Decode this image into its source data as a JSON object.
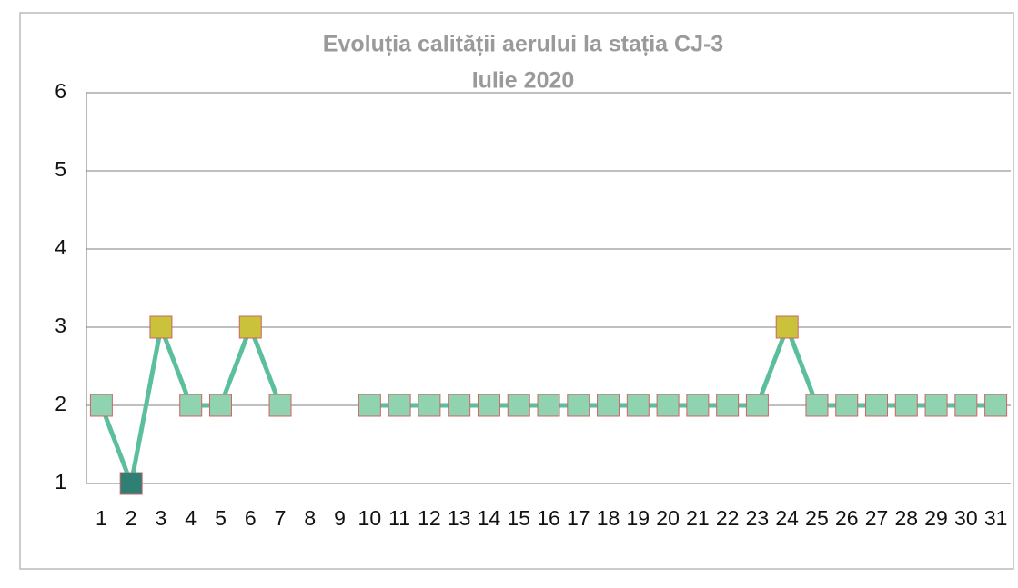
{
  "chart_data": {
    "type": "line",
    "title": "Evoluția calității aerului la stația CJ-3",
    "subtitle": "Iulie 2020",
    "categories": [
      "1",
      "2",
      "3",
      "4",
      "5",
      "6",
      "7",
      "8",
      "9",
      "10",
      "11",
      "12",
      "13",
      "14",
      "15",
      "16",
      "17",
      "18",
      "19",
      "20",
      "21",
      "22",
      "23",
      "24",
      "25",
      "26",
      "27",
      "28",
      "29",
      "30",
      "31"
    ],
    "series": [
      {
        "name": "CJ-3",
        "color": "#5cbf9c",
        "values": [
          2,
          1,
          3,
          2,
          2,
          3,
          2,
          null,
          null,
          2,
          2,
          2,
          2,
          2,
          2,
          2,
          2,
          2,
          2,
          2,
          2,
          2,
          2,
          3,
          2,
          2,
          2,
          2,
          2,
          2,
          2
        ],
        "marker_colors": [
          "#8fd3b0",
          "#2e7f74",
          "#c9c23a",
          "#8fd3b0",
          "#8fd3b0",
          "#c9c23a",
          "#8fd3b0",
          null,
          null,
          "#8fd3b0",
          "#8fd3b0",
          "#8fd3b0",
          "#8fd3b0",
          "#8fd3b0",
          "#8fd3b0",
          "#8fd3b0",
          "#8fd3b0",
          "#8fd3b0",
          "#8fd3b0",
          "#8fd3b0",
          "#8fd3b0",
          "#8fd3b0",
          "#8fd3b0",
          "#c9c23a",
          "#8fd3b0",
          "#8fd3b0",
          "#8fd3b0",
          "#8fd3b0",
          "#8fd3b0",
          "#8fd3b0",
          "#8fd3b0"
        ]
      }
    ],
    "ylim": [
      1,
      6
    ],
    "yticks": [
      1,
      2,
      3,
      4,
      5,
      6
    ],
    "grid": true
  }
}
